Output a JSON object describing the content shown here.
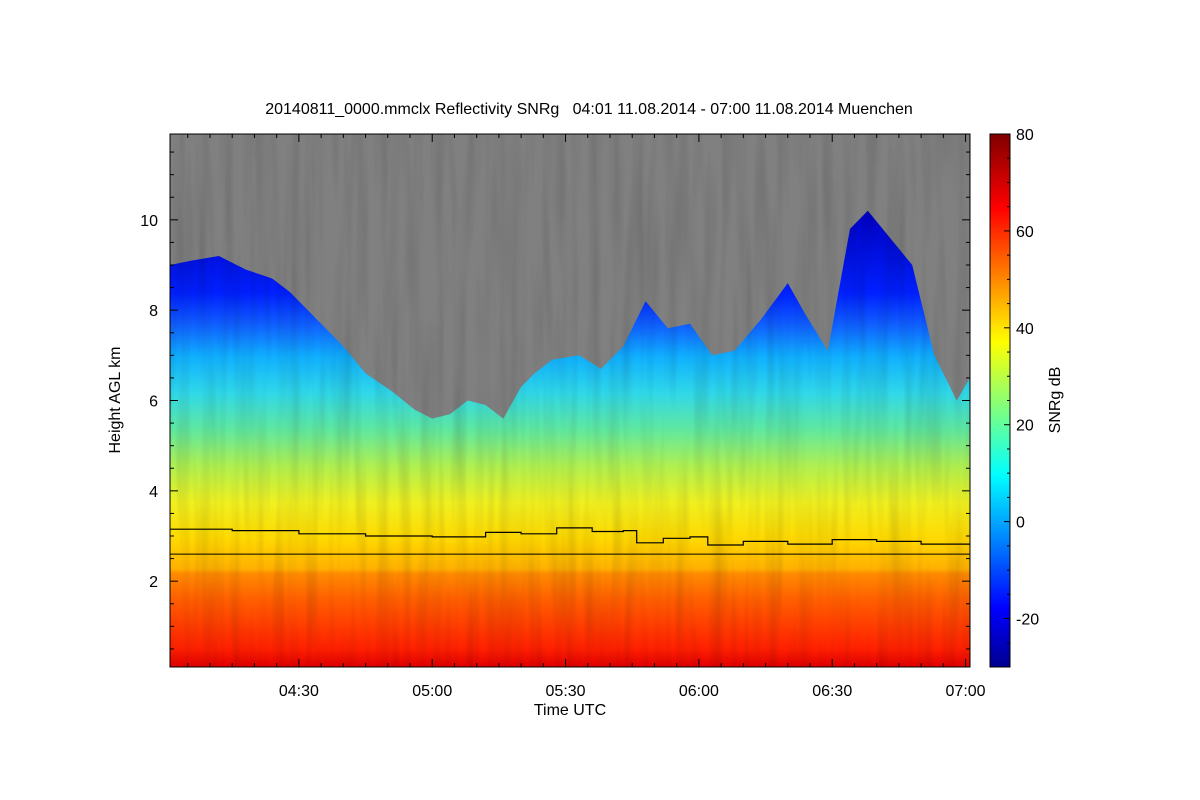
{
  "chart_data": {
    "type": "heatmap",
    "title": "20140811_0000.mmclx Reflectivity SNRg   04:01 11.08.2014 - 07:00 11.08.2014 Muenchen",
    "xlabel": "Time UTC",
    "ylabel": "Height AGL km",
    "x_range_minutes_utc": [
      241,
      421
    ],
    "x_ticks": [
      {
        "label": "04:30",
        "minutes": 270
      },
      {
        "label": "05:00",
        "minutes": 300
      },
      {
        "label": "05:30",
        "minutes": 330
      },
      {
        "label": "06:00",
        "minutes": 360
      },
      {
        "label": "06:30",
        "minutes": 390
      },
      {
        "label": "07:00",
        "minutes": 420
      }
    ],
    "y_range_km": [
      0.1,
      11.9
    ],
    "y_ticks": [
      {
        "label": "2",
        "value": 2
      },
      {
        "label": "4",
        "value": 4
      },
      {
        "label": "6",
        "value": 6
      },
      {
        "label": "8",
        "value": 8
      },
      {
        "label": "10",
        "value": 10
      }
    ],
    "colorbar": {
      "label": "SNRg dB",
      "range": [
        -30,
        80
      ],
      "ticks": [
        {
          "label": "-20",
          "value": -20
        },
        {
          "label": "0",
          "value": 0
        },
        {
          "label": "20",
          "value": 20
        },
        {
          "label": "40",
          "value": 40
        },
        {
          "label": "60",
          "value": 60
        },
        {
          "label": "80",
          "value": 80
        }
      ],
      "colors": [
        "#00008f",
        "#0000ff",
        "#00ffff",
        "#ffff00",
        "#ff0000",
        "#800000"
      ]
    },
    "no_signal_color": "#808080",
    "cloud_top_km": [
      [
        241,
        9.0
      ],
      [
        246,
        9.1
      ],
      [
        252,
        9.2
      ],
      [
        258,
        8.9
      ],
      [
        264,
        8.7
      ],
      [
        268,
        8.4
      ],
      [
        274,
        7.8
      ],
      [
        280,
        7.2
      ],
      [
        285,
        6.6
      ],
      [
        291,
        6.2
      ],
      [
        296,
        5.8
      ],
      [
        300,
        5.6
      ],
      [
        304,
        5.7
      ],
      [
        308,
        6.0
      ],
      [
        312,
        5.9
      ],
      [
        316,
        5.6
      ],
      [
        320,
        6.3
      ],
      [
        323,
        6.6
      ],
      [
        327,
        6.9
      ],
      [
        333,
        7.0
      ],
      [
        338,
        6.7
      ],
      [
        343,
        7.2
      ],
      [
        348,
        8.2
      ],
      [
        353,
        7.6
      ],
      [
        358,
        7.7
      ],
      [
        363,
        7.0
      ],
      [
        368,
        7.1
      ],
      [
        374,
        7.8
      ],
      [
        380,
        8.6
      ],
      [
        384,
        7.9
      ],
      [
        389,
        7.1
      ],
      [
        394,
        9.8
      ],
      [
        398,
        10.2
      ],
      [
        403,
        9.6
      ],
      [
        408,
        9.0
      ],
      [
        413,
        7.0
      ],
      [
        418,
        6.0
      ],
      [
        421,
        6.5
      ]
    ],
    "upper_boundary_km": [
      [
        241,
        3.15
      ],
      [
        255,
        3.12
      ],
      [
        270,
        3.05
      ],
      [
        285,
        3.0
      ],
      [
        300,
        2.98
      ],
      [
        312,
        3.08
      ],
      [
        320,
        3.05
      ],
      [
        328,
        3.18
      ],
      [
        336,
        3.1
      ],
      [
        343,
        3.12
      ],
      [
        346,
        2.85
      ],
      [
        352,
        2.95
      ],
      [
        358,
        2.98
      ],
      [
        362,
        2.8
      ],
      [
        370,
        2.88
      ],
      [
        380,
        2.82
      ],
      [
        390,
        2.92
      ],
      [
        400,
        2.88
      ],
      [
        410,
        2.82
      ],
      [
        421,
        2.78
      ]
    ],
    "melting_layer_km": 2.6
  }
}
